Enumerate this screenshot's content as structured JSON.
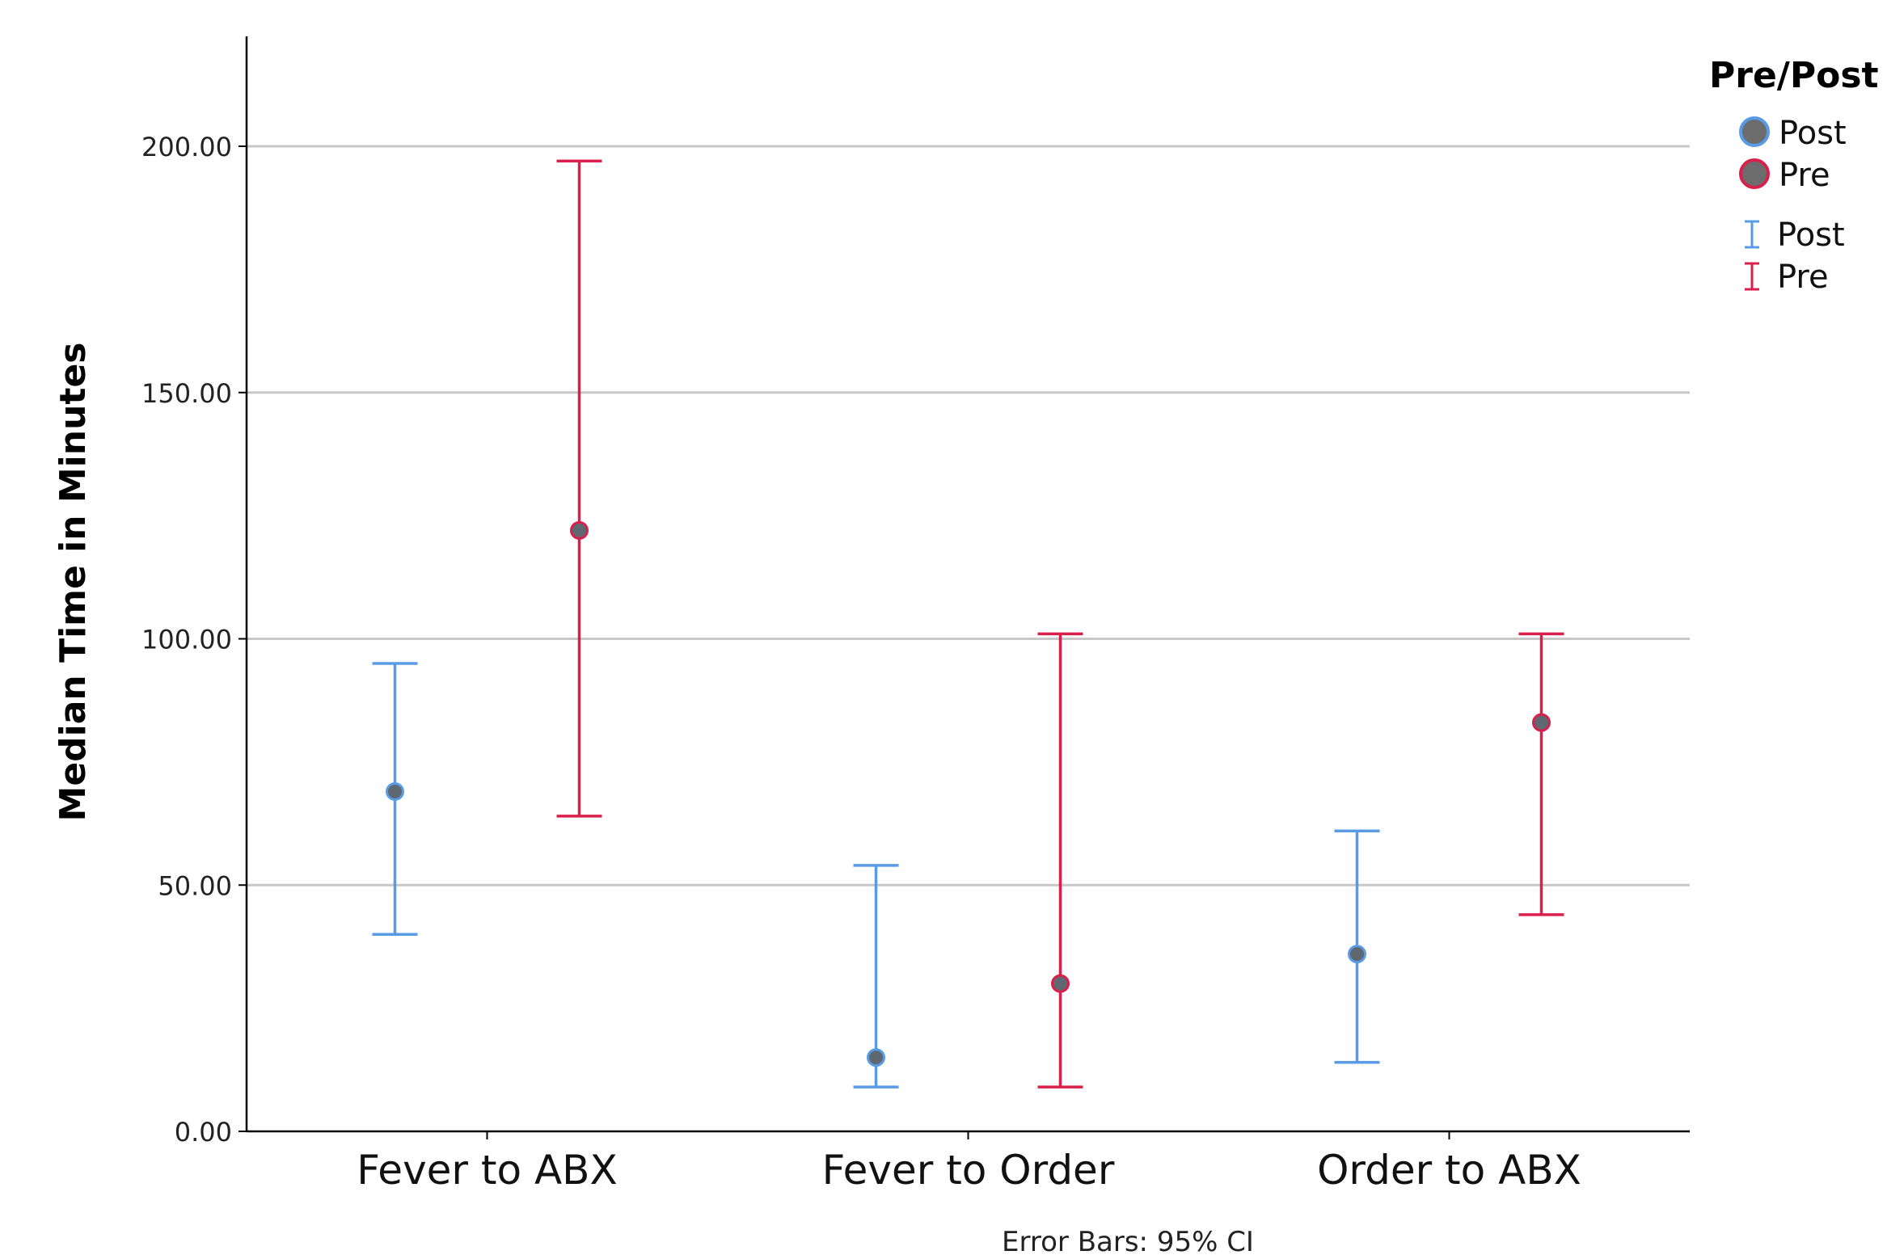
{
  "chart_data": {
    "type": "errorbar",
    "title": "",
    "xlabel": "",
    "ylabel": "Median Time in Minutes",
    "ylim": [
      0,
      200
    ],
    "yticks": [
      {
        "value": 0,
        "label": "0.00"
      },
      {
        "value": 50,
        "label": "50.00"
      },
      {
        "value": 100,
        "label": "100.00"
      },
      {
        "value": 150,
        "label": "150.00"
      },
      {
        "value": 200,
        "label": "200.00"
      }
    ],
    "grid": true,
    "categories": [
      "Fever to ABX",
      "Fever to Order",
      "Order to ABX"
    ],
    "series": [
      {
        "name": "Post",
        "color": "#5a9be6",
        "points": [
          {
            "category": "Fever to ABX",
            "value": 69,
            "ci_low": 40,
            "ci_high": 95
          },
          {
            "category": "Fever to Order",
            "value": 15,
            "ci_low": 9,
            "ci_high": 54
          },
          {
            "category": "Order to ABX",
            "value": 36,
            "ci_low": 14,
            "ci_high": 61
          }
        ]
      },
      {
        "name": "Pre",
        "color": "#d9204d",
        "points": [
          {
            "category": "Fever to ABX",
            "value": 122,
            "ci_low": 64,
            "ci_high": 197
          },
          {
            "category": "Fever to Order",
            "value": 30,
            "ci_low": 9,
            "ci_high": 101
          },
          {
            "category": "Order to ABX",
            "value": 83,
            "ci_low": 44,
            "ci_high": 101
          }
        ]
      }
    ],
    "legend": {
      "title": "Pre/Post",
      "position": "top-right",
      "marker_entries": [
        "Post",
        "Pre"
      ],
      "errorbar_entries": [
        "Post",
        "Pre"
      ]
    },
    "footnote": "Error Bars: 95% CI"
  }
}
